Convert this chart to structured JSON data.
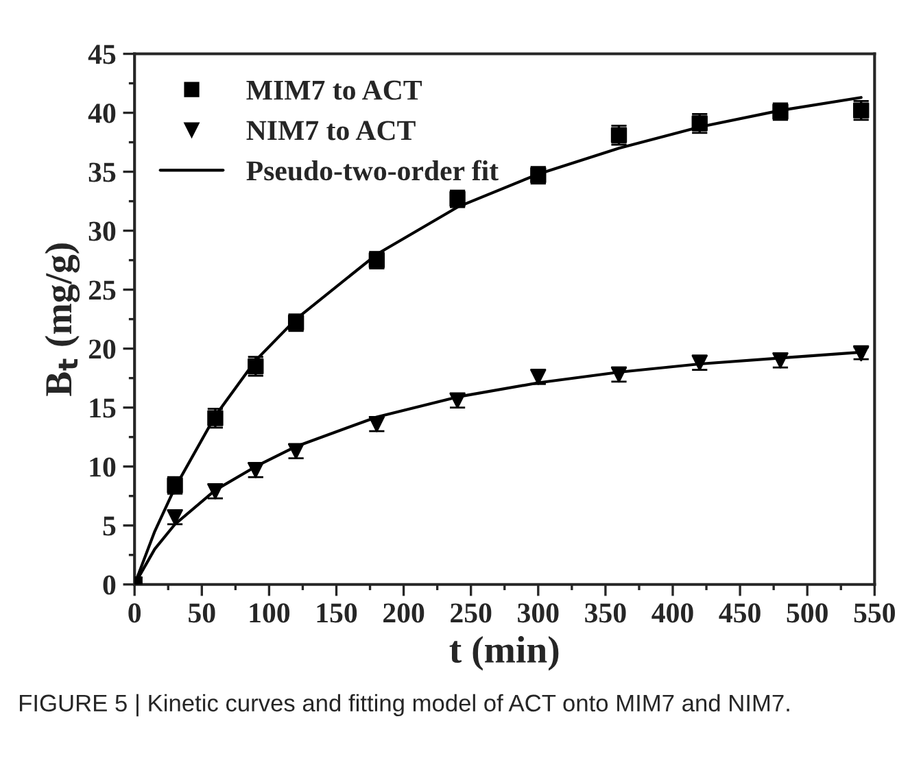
{
  "chart_data": {
    "type": "scatter",
    "xlabel": "t (min)",
    "ylabel": "B$_{t}$ (mg/g)",
    "xlim": [
      0,
      550
    ],
    "xticks": [
      0,
      50,
      100,
      150,
      200,
      250,
      300,
      350,
      400,
      450,
      500,
      550
    ],
    "ylim": [
      0,
      45
    ],
    "yticks": [
      0,
      5,
      10,
      15,
      20,
      25,
      30,
      35,
      40,
      45
    ],
    "grid": false,
    "legend": "top left",
    "series": [
      {
        "name": "MIM7 to ACT",
        "marker": "square",
        "color": "#000000",
        "x": [
          0,
          30,
          60,
          90,
          120,
          180,
          240,
          300,
          360,
          420,
          480,
          540
        ],
        "values": [
          0,
          8.4,
          14.1,
          18.5,
          22.2,
          27.5,
          32.7,
          34.7,
          38.1,
          39.1,
          40.1,
          40.2
        ],
        "errors": [
          null,
          0.7,
          0.8,
          0.8,
          0.7,
          0.7,
          0.7,
          0.7,
          0.8,
          0.8,
          0.7,
          0.8
        ]
      },
      {
        "name": "NIM7 to ACT",
        "marker": "triangle",
        "color": "#000000",
        "x": [
          0,
          30,
          60,
          90,
          120,
          180,
          240,
          300,
          360,
          420,
          480,
          540
        ],
        "values": [
          0,
          5.7,
          7.9,
          9.7,
          11.3,
          13.6,
          15.6,
          17.6,
          17.8,
          18.8,
          19.0,
          19.6
        ],
        "errors": [
          null,
          0.6,
          0.6,
          0.6,
          0.6,
          0.6,
          0.6,
          0.6,
          0.6,
          0.6,
          0.6,
          0.5
        ]
      },
      {
        "name": "Pseudo-two-order fit",
        "type": "line",
        "color": "#000000",
        "line_style": "solid",
        "x": [
          0,
          15,
          30,
          60,
          90,
          120,
          180,
          240,
          300,
          360,
          420,
          480,
          540
        ],
        "values": [
          0,
          4.5,
          8.2,
          14.3,
          19.0,
          22.5,
          28.0,
          32.0,
          34.8,
          37.0,
          38.8,
          40.2,
          41.3
        ]
      },
      {
        "type": "line",
        "color": "#000000",
        "line_style": "solid",
        "x": [
          0,
          15,
          30,
          60,
          90,
          120,
          180,
          240,
          300,
          360,
          420,
          480,
          540
        ],
        "values": [
          0,
          3.0,
          5.1,
          8.0,
          10.0,
          11.7,
          14.2,
          15.9,
          17.1,
          18.0,
          18.7,
          19.2,
          19.7
        ]
      }
    ],
    "annotations": [
      "FIGURE 5 | Kinetic curves and fitting model of ACT onto MIM7 and NIM7."
    ]
  }
}
